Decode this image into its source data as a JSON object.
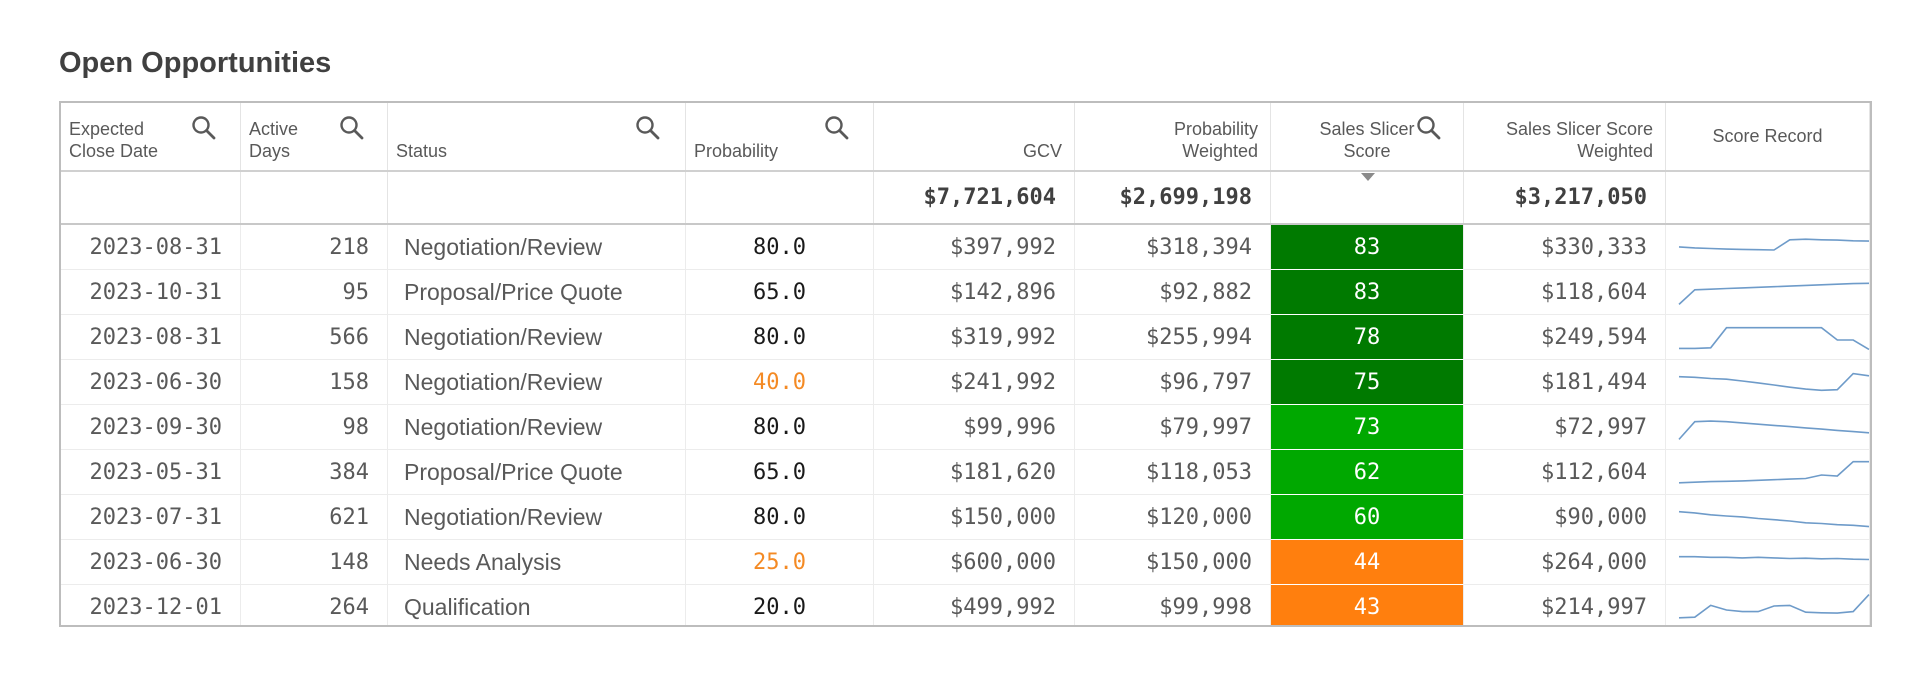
{
  "title": "Open Opportunities",
  "colors": {
    "score_dark_green": "#007a00",
    "score_green": "#00a800",
    "score_orange": "#ff7f0e",
    "probability_low": "#f48a24",
    "sparkline": "#6e9bc9"
  },
  "columns": [
    {
      "key": "close_date",
      "label_lines": [
        "Expected",
        "Close Date"
      ],
      "searchable": true
    },
    {
      "key": "active_days",
      "label_lines": [
        "Active",
        "Days"
      ],
      "searchable": true
    },
    {
      "key": "status",
      "label_lines": [
        "Status"
      ],
      "searchable": true
    },
    {
      "key": "probability",
      "label_lines": [
        "Probability"
      ],
      "searchable": true
    },
    {
      "key": "gcv",
      "label_lines": [
        "GCV"
      ],
      "searchable": false
    },
    {
      "key": "probability_weighted",
      "label_lines": [
        "Probability",
        "Weighted"
      ],
      "searchable": false
    },
    {
      "key": "score",
      "label_lines": [
        "Sales Slicer",
        "Score"
      ],
      "searchable": true
    },
    {
      "key": "score_weighted",
      "label_lines": [
        "Sales Slicer Score",
        "Weighted"
      ],
      "searchable": false
    },
    {
      "key": "score_record",
      "label_lines": [
        "Score Record"
      ],
      "searchable": false
    }
  ],
  "totals": {
    "gcv": "$7,721,604",
    "probability_weighted": "$2,699,198",
    "score_weighted": "$3,217,050"
  },
  "rows": [
    {
      "close_date": "2023-08-31",
      "active_days": "218",
      "status": "Negotiation/Review",
      "probability": "80.0",
      "probability_low": false,
      "gcv": "$397,992",
      "probability_weighted": "$318,394",
      "score": "83",
      "score_color": "#007a00",
      "score_weighted": "$330,333",
      "spark": [
        0.55,
        0.52,
        0.5,
        0.48,
        0.47,
        0.46,
        0.45,
        0.78,
        0.8,
        0.78,
        0.77,
        0.75,
        0.74
      ]
    },
    {
      "close_date": "2023-10-31",
      "active_days": "95",
      "status": "Proposal/Price Quote",
      "probability": "65.0",
      "probability_low": false,
      "gcv": "$142,896",
      "probability_weighted": "$92,882",
      "score": "83",
      "score_color": "#007a00",
      "score_weighted": "$118,604",
      "spark": [
        0.15,
        0.62,
        0.64,
        0.66,
        0.68,
        0.7,
        0.72,
        0.74,
        0.76,
        0.78,
        0.8,
        0.82,
        0.83
      ]
    },
    {
      "close_date": "2023-08-31",
      "active_days": "566",
      "status": "Negotiation/Review",
      "probability": "80.0",
      "probability_low": false,
      "gcv": "$319,992",
      "probability_weighted": "$255,994",
      "score": "78",
      "score_color": "#007a00",
      "score_weighted": "$249,594",
      "spark": [
        0.18,
        0.18,
        0.2,
        0.85,
        0.85,
        0.85,
        0.85,
        0.85,
        0.85,
        0.85,
        0.45,
        0.45,
        0.15
      ]
    },
    {
      "close_date": "2023-06-30",
      "active_days": "158",
      "status": "Negotiation/Review",
      "probability": "40.0",
      "probability_low": true,
      "gcv": "$241,992",
      "probability_weighted": "$96,797",
      "score": "75",
      "score_color": "#007a00",
      "score_weighted": "$181,494",
      "spark": [
        0.72,
        0.7,
        0.66,
        0.64,
        0.58,
        0.52,
        0.45,
        0.38,
        0.32,
        0.28,
        0.3,
        0.82,
        0.75
      ]
    },
    {
      "close_date": "2023-09-30",
      "active_days": "98",
      "status": "Negotiation/Review",
      "probability": "80.0",
      "probability_low": false,
      "gcv": "$99,996",
      "probability_weighted": "$79,997",
      "score": "73",
      "score_color": "#00a800",
      "score_weighted": "$72,997",
      "spark": [
        0.15,
        0.72,
        0.74,
        0.72,
        0.68,
        0.64,
        0.6,
        0.56,
        0.52,
        0.48,
        0.44,
        0.4,
        0.36
      ]
    },
    {
      "close_date": "2023-05-31",
      "active_days": "384",
      "status": "Proposal/Price Quote",
      "probability": "65.0",
      "probability_low": false,
      "gcv": "$181,620",
      "probability_weighted": "$118,053",
      "score": "62",
      "score_color": "#00a800",
      "score_weighted": "$112,604",
      "spark": [
        0.2,
        0.22,
        0.24,
        0.25,
        0.26,
        0.28,
        0.3,
        0.32,
        0.34,
        0.45,
        0.42,
        0.88,
        0.88
      ]
    },
    {
      "close_date": "2023-07-31",
      "active_days": "621",
      "status": "Negotiation/Review",
      "probability": "80.0",
      "probability_low": false,
      "gcv": "$150,000",
      "probability_weighted": "$120,000",
      "score": "60",
      "score_color": "#00a800",
      "score_weighted": "$90,000",
      "spark": [
        0.72,
        0.68,
        0.62,
        0.58,
        0.55,
        0.5,
        0.46,
        0.42,
        0.36,
        0.34,
        0.3,
        0.28,
        0.24
      ]
    },
    {
      "close_date": "2023-06-30",
      "active_days": "148",
      "status": "Needs Analysis",
      "probability": "25.0",
      "probability_low": true,
      "gcv": "$600,000",
      "probability_weighted": "$150,000",
      "score": "44",
      "score_color": "#ff7f0e",
      "score_weighted": "$264,000",
      "spark": [
        0.72,
        0.72,
        0.7,
        0.7,
        0.68,
        0.7,
        0.68,
        0.66,
        0.67,
        0.65,
        0.66,
        0.64,
        0.63
      ]
    },
    {
      "close_date": "2023-12-01",
      "active_days": "264",
      "status": "Qualification",
      "probability": "20.0",
      "probability_low": false,
      "gcv": "$499,992",
      "probability_weighted": "$99,998",
      "score": "43",
      "score_color": "#ff7f0e",
      "score_weighted": "$214,997",
      "spark": [
        0.2,
        0.22,
        0.6,
        0.45,
        0.4,
        0.4,
        0.58,
        0.6,
        0.38,
        0.36,
        0.35,
        0.4,
        0.95
      ]
    }
  ]
}
